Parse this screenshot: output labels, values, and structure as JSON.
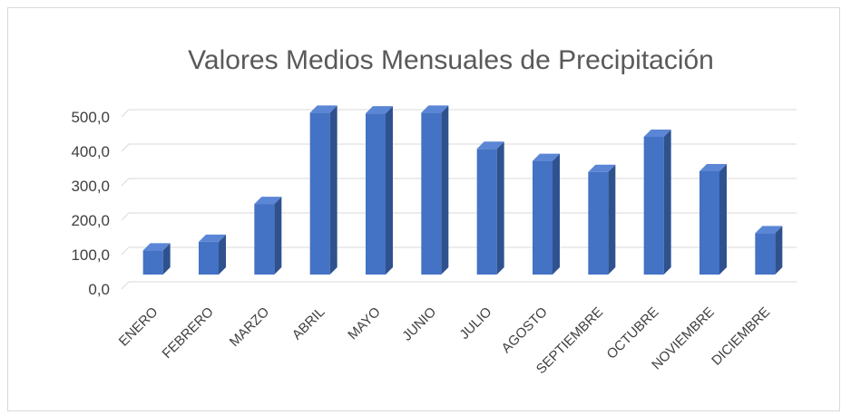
{
  "chart_data": {
    "type": "bar",
    "title": "Valores Medios Mensuales de Precipitación",
    "categories": [
      "ENERO",
      "FEBRERO",
      "MARZO",
      "ABRIL",
      "MAYO",
      "JUNIO",
      "JULIO",
      "AGOSTO",
      "SEPTIEMBRE",
      "OCTUBRE",
      "NOVIEMBRE",
      "DICIEMBRE"
    ],
    "values": [
      70,
      95,
      205,
      470,
      468,
      470,
      365,
      330,
      298,
      400,
      300,
      120
    ],
    "yticks": [
      "0,0",
      "100,0",
      "200,0",
      "300,0",
      "400,0",
      "500,0"
    ],
    "ylim": [
      0,
      500
    ],
    "xlabel": "",
    "ylabel": "",
    "grid": true,
    "style": "3d-column",
    "colors": {
      "front": "#4472c4",
      "side": "#2f528f",
      "top": "#5b86d6",
      "grid": "#d9d9d9"
    }
  }
}
